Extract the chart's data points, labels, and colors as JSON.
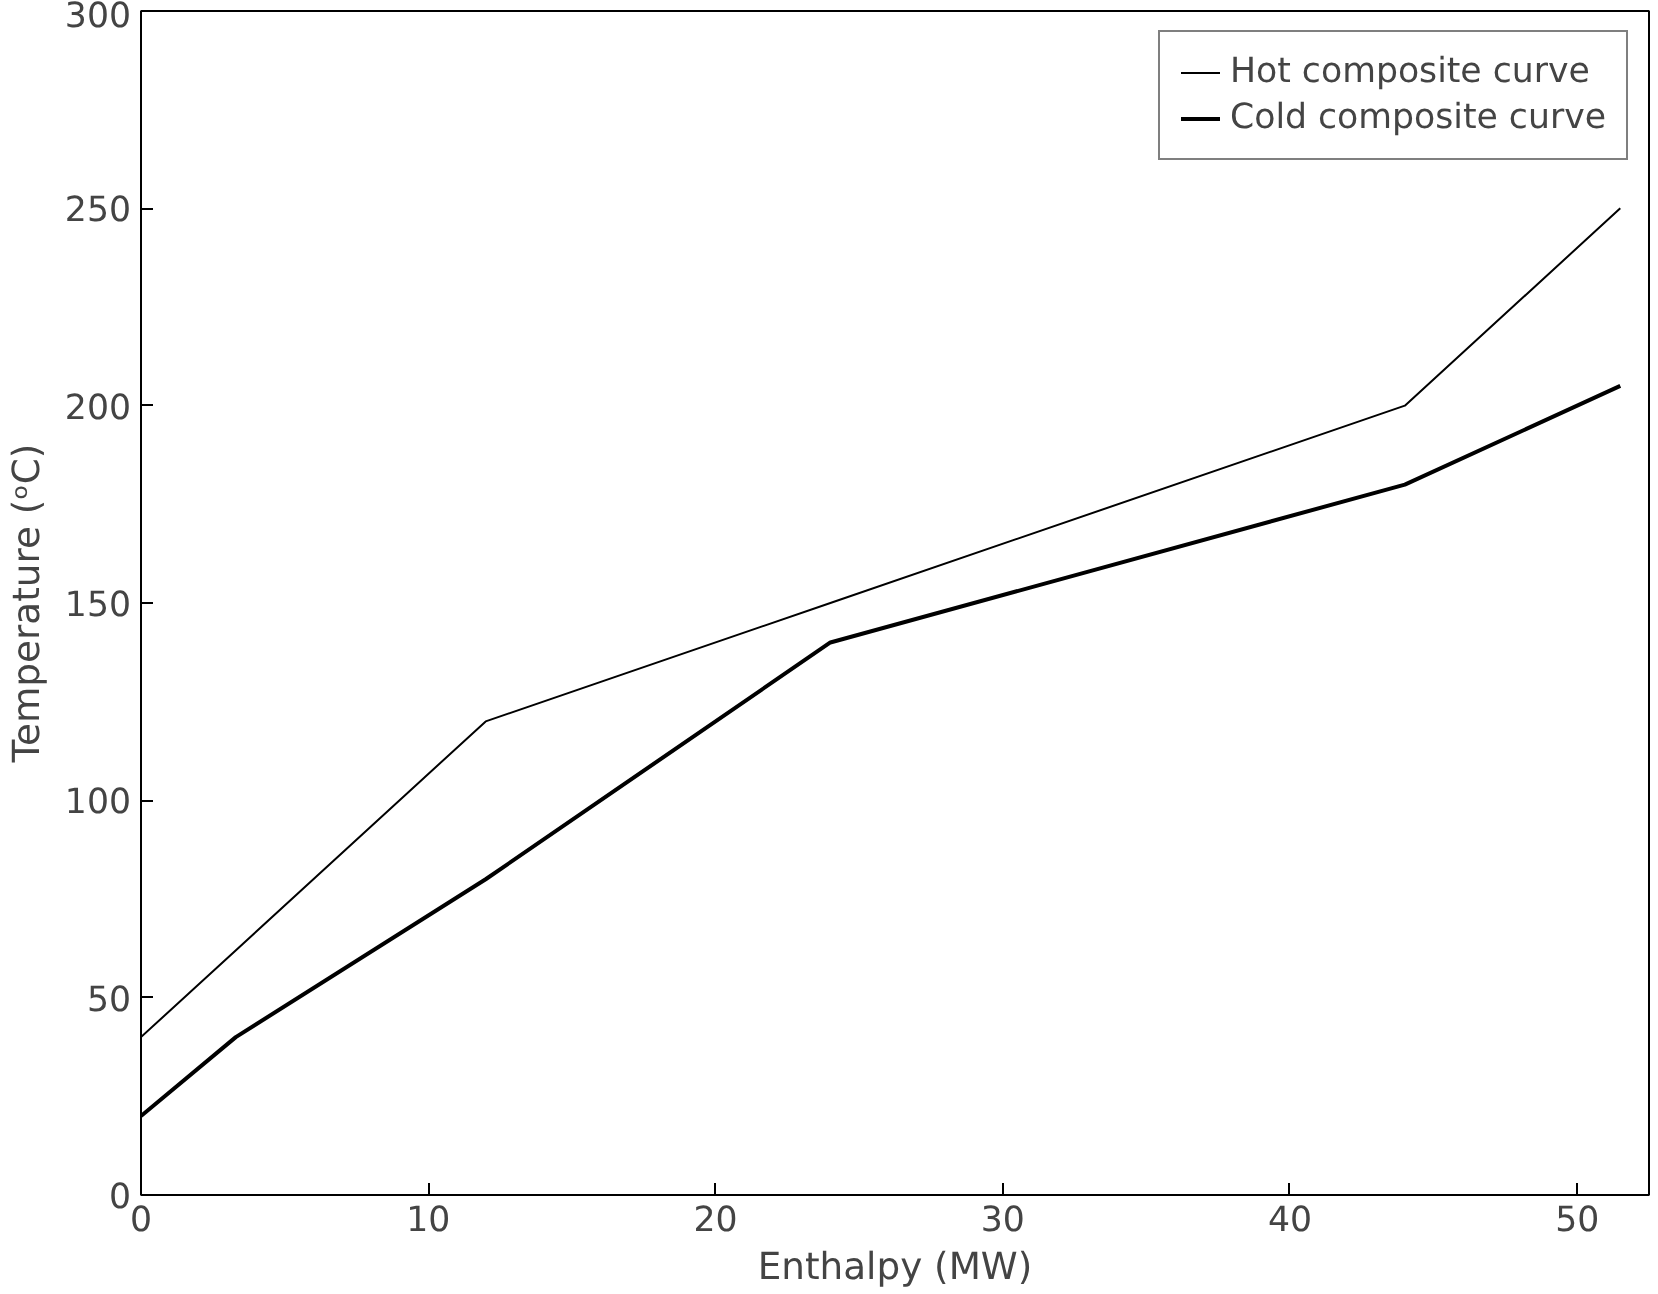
{
  "chart_data": {
    "type": "line",
    "xlabel": "Enthalpy (MW)",
    "ylabel": "Temperature (ᵒC)",
    "xlim": [
      0,
      52.5
    ],
    "ylim": [
      0,
      300
    ],
    "xticks": [
      0,
      10,
      20,
      30,
      40,
      50
    ],
    "yticks": [
      0,
      50,
      100,
      150,
      200,
      250,
      300
    ],
    "grid": false,
    "legend": "top right",
    "line_style": "solid",
    "series": [
      {
        "name": "Hot composite curve",
        "color": "#000000",
        "x": [
          0,
          12,
          24,
          44,
          51.5
        ],
        "values": [
          40,
          120,
          150,
          200,
          250
        ]
      },
      {
        "name": "Cold composite curve",
        "color": "#000000",
        "x": [
          0,
          3.3,
          12,
          24,
          44,
          51.5
        ],
        "values": [
          20,
          40,
          80,
          140,
          180,
          205
        ]
      }
    ]
  }
}
